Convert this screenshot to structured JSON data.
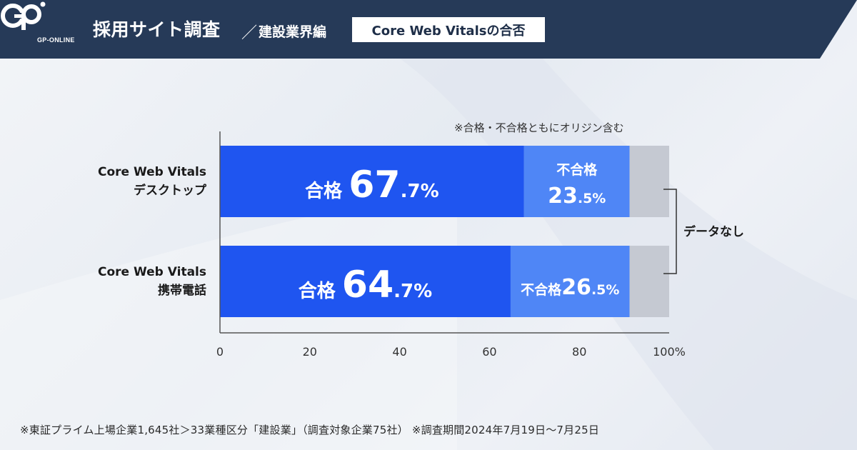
{
  "header": {
    "logo_text": "GP-ONLINE",
    "title": "採用サイト調査",
    "separator": "／",
    "subtitle": "建設業界編",
    "badge": "Core Web Vitalsの合否"
  },
  "colors": {
    "header_bg": "#263a58",
    "pass": "#1f55f0",
    "fail": "#4f86f6",
    "no_data": "#c5c9d2",
    "axis": "#555555"
  },
  "chart_data": {
    "type": "bar",
    "orientation": "horizontal",
    "stacked": true,
    "categories": [
      [
        "Core Web Vitals",
        "デスクトップ"
      ],
      [
        "Core Web Vitals",
        "携帯電話"
      ]
    ],
    "series": [
      {
        "name": "合格",
        "values": [
          67.7,
          64.7
        ],
        "labels": [
          [
            "67",
            ".7%"
          ],
          [
            "64",
            ".7%"
          ]
        ]
      },
      {
        "name": "不合格",
        "values": [
          23.5,
          26.5
        ],
        "labels": [
          [
            "23",
            ".5%"
          ],
          [
            "26",
            ".5%"
          ]
        ]
      },
      {
        "name": "データなし",
        "values": [
          8.8,
          8.8
        ]
      }
    ],
    "xlim": [
      0,
      100
    ],
    "ticks": [
      "0",
      "20",
      "40",
      "60",
      "80",
      "100%"
    ],
    "no_data_label": "データなし",
    "note": "※合格・不合格ともにオリジン含む",
    "grid": false
  },
  "footer": "※東証プライム上場企業1,645社＞33業種区分「建設業」（調査対象企業75社） ※調査期間2024年7月19日〜7月25日"
}
